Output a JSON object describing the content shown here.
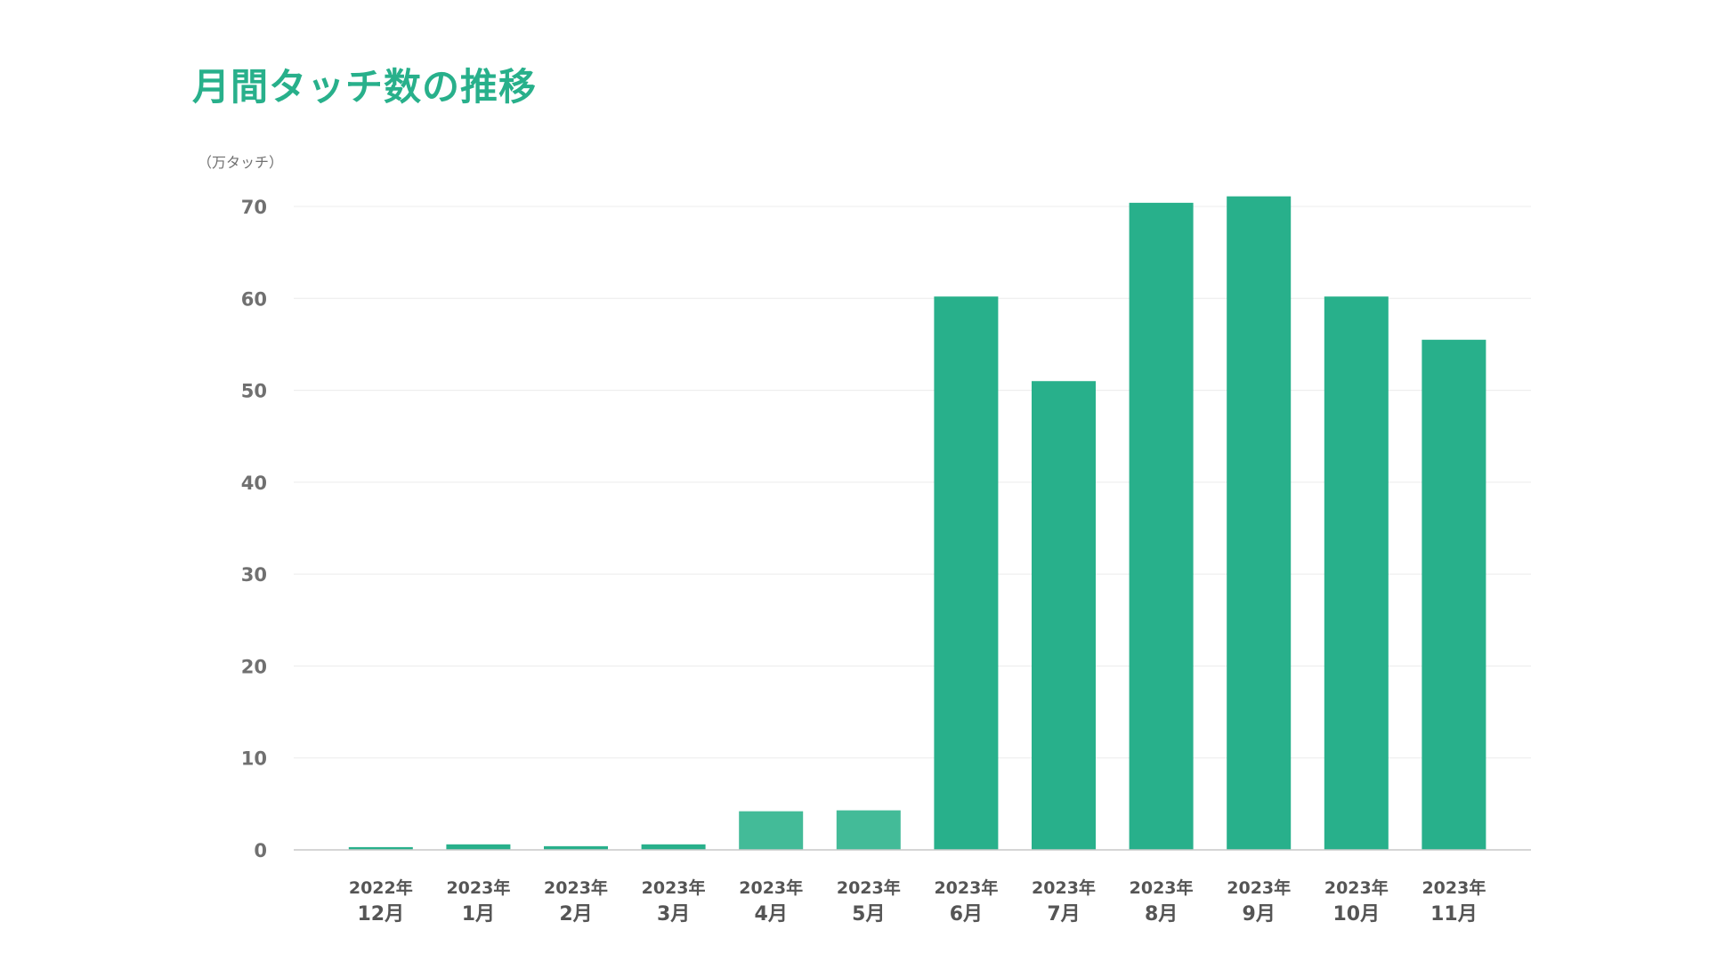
{
  "chart_data": {
    "type": "bar",
    "title": "月間タッチ数の推移",
    "ylabel": "（万タッチ）",
    "xlabel": "",
    "ylim": [
      0,
      70
    ],
    "yticks": [
      0,
      10,
      20,
      30,
      40,
      50,
      60,
      70
    ],
    "grid": true,
    "categories": [
      {
        "year": "2022年",
        "month": "12月"
      },
      {
        "year": "2023年",
        "month": "1月"
      },
      {
        "year": "2023年",
        "month": "2月"
      },
      {
        "year": "2023年",
        "month": "3月"
      },
      {
        "year": "2023年",
        "month": "4月"
      },
      {
        "year": "2023年",
        "month": "5月"
      },
      {
        "year": "2023年",
        "month": "6月"
      },
      {
        "year": "2023年",
        "month": "7月"
      },
      {
        "year": "2023年",
        "month": "8月"
      },
      {
        "year": "2023年",
        "month": "9月"
      },
      {
        "year": "2023年",
        "month": "10月"
      },
      {
        "year": "2023年",
        "month": "11月"
      }
    ],
    "values": [
      0.3,
      0.6,
      0.4,
      0.6,
      4.2,
      4.3,
      60.2,
      51.0,
      70.4,
      71.1,
      60.2,
      55.5
    ],
    "bar_colors": [
      "#28b08b",
      "#28b08b",
      "#28b08b",
      "#28b08b",
      "#43bb98",
      "#43bb98",
      "#28b08b",
      "#28b08b",
      "#28b08b",
      "#28b08b",
      "#28b08b",
      "#28b08b"
    ]
  },
  "colors": {
    "accent": "#28b08b",
    "grid": "#ececec",
    "axis": "#c8c8c8",
    "tick_text": "#707070"
  }
}
